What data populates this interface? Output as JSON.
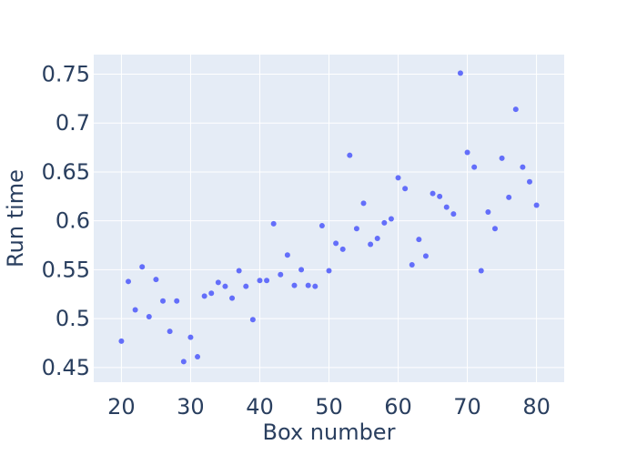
{
  "chart_data": {
    "type": "scatter",
    "title": "",
    "xlabel": "Box number",
    "ylabel": "Run time",
    "xlim": [
      16,
      84
    ],
    "ylim": [
      0.435,
      0.77
    ],
    "x_ticks": [
      20,
      30,
      40,
      50,
      60,
      70,
      80
    ],
    "x_tick_labels": [
      "20",
      "30",
      "40",
      "50",
      "60",
      "70",
      "80"
    ],
    "y_ticks": [
      0.45,
      0.5,
      0.55,
      0.6,
      0.65,
      0.7,
      0.75
    ],
    "y_tick_labels": [
      "0.45",
      "0.5",
      "0.55",
      "0.6",
      "0.65",
      "0.7",
      "0.75"
    ],
    "grid": true,
    "colors": {
      "plot_bg": "#e5ecf6",
      "grid": "#ffffff",
      "marker": "#636efa",
      "text": "#2a3f5f"
    },
    "x": [
      20,
      21,
      22,
      23,
      24,
      25,
      26,
      27,
      28,
      29,
      30,
      31,
      32,
      33,
      34,
      35,
      36,
      37,
      38,
      39,
      40,
      41,
      42,
      43,
      44,
      45,
      46,
      47,
      48,
      49,
      50,
      51,
      52,
      53,
      54,
      55,
      56,
      57,
      58,
      59,
      60,
      61,
      62,
      63,
      64,
      65,
      66,
      67,
      68,
      69,
      70,
      71,
      72,
      73,
      74,
      75,
      76,
      77,
      78,
      79,
      80
    ],
    "y": [
      0.477,
      0.538,
      0.509,
      0.553,
      0.502,
      0.54,
      0.518,
      0.487,
      0.518,
      0.456,
      0.481,
      0.461,
      0.523,
      0.526,
      0.537,
      0.533,
      0.521,
      0.549,
      0.533,
      0.499,
      0.539,
      0.539,
      0.597,
      0.545,
      0.565,
      0.534,
      0.55,
      0.534,
      0.533,
      0.595,
      0.549,
      0.577,
      0.571,
      0.667,
      0.592,
      0.618,
      0.576,
      0.582,
      0.598,
      0.602,
      0.644,
      0.633,
      0.555,
      0.581,
      0.564,
      0.628,
      0.625,
      0.614,
      0.607,
      0.751,
      0.67,
      0.655,
      0.549,
      0.609,
      0.592,
      0.664,
      0.624,
      0.714,
      0.655,
      0.64,
      0.616
    ]
  }
}
